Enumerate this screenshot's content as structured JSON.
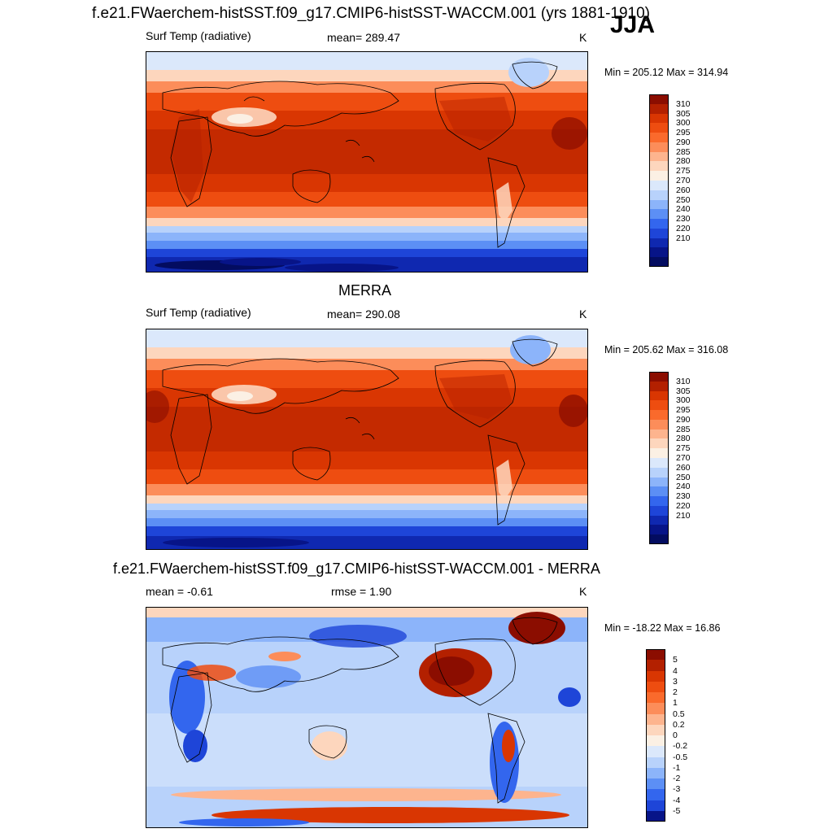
{
  "header": {
    "title": "f.e21.FWaerchem-histSST.f09_g17.CMIP6-histSST-WACCM.001 (yrs 1881-1910)",
    "season": "JJA"
  },
  "panels": [
    {
      "id": "model",
      "title": "",
      "left_label": "Surf Temp (radiative)",
      "center_label": "mean= 289.47",
      "units": "K",
      "minmax": "Min = 205.12 Max = 314.94"
    },
    {
      "id": "obs",
      "title": "MERRA",
      "left_label": "Surf Temp (radiative)",
      "center_label": "mean= 290.08",
      "units": "K",
      "minmax": "Min = 205.62 Max = 316.08"
    },
    {
      "id": "diff",
      "title": "f.e21.FWaerchem-histSST.f09_g17.CMIP6-histSST-WACCM.001 - MERRA",
      "left_label": "mean =  -0.61",
      "center_label": "rmse =   1.90",
      "units": "K",
      "minmax": "Min = -18.22 Max =  16.86"
    }
  ],
  "colorbars": {
    "abs": {
      "labels": [
        "310",
        "305",
        "300",
        "295",
        "290",
        "285",
        "280",
        "275",
        "270",
        "260",
        "250",
        "240",
        "230",
        "220",
        "210"
      ],
      "colors": [
        "#8b0d00",
        "#b32000",
        "#d93602",
        "#ee4d10",
        "#fa6a2c",
        "#fc8d5a",
        "#fdb48e",
        "#fdd6bd",
        "#fbf0e4",
        "#dbe8fb",
        "#b8d2fb",
        "#8cb4fa",
        "#5c8ff5",
        "#3366ee",
        "#1e45d8",
        "#0f28b0",
        "#071488",
        "#030c60"
      ]
    },
    "diff": {
      "labels": [
        "5",
        "4",
        "3",
        "2",
        "1",
        "0.5",
        "0.2",
        "0",
        "-0.2",
        "-0.5",
        "-1",
        "-2",
        "-3",
        "-4",
        "-5"
      ],
      "colors": [
        "#8b0d00",
        "#b32000",
        "#d93602",
        "#ee4d10",
        "#fa6a2c",
        "#fc8d5a",
        "#fdb48e",
        "#fdd6bd",
        "#fbf0e4",
        "#dbe8fb",
        "#b8d2fb",
        "#8cb4fa",
        "#5c8ff5",
        "#3366ee",
        "#1e45d8",
        "#071488"
      ]
    }
  },
  "chart_data": [
    {
      "type": "heatmap",
      "title": "f.e21.FWaerchem-histSST.f09_g17.CMIP6-histSST-WACCM.001 (yrs 1881-1910)",
      "variable": "Surf Temp (radiative)",
      "units": "K",
      "mean": 289.47,
      "min": 205.12,
      "max": 314.94,
      "levels": [
        210,
        220,
        230,
        240,
        250,
        260,
        270,
        275,
        280,
        285,
        290,
        295,
        300,
        305,
        310
      ]
    },
    {
      "type": "heatmap",
      "title": "MERRA",
      "variable": "Surf Temp (radiative)",
      "units": "K",
      "mean": 290.08,
      "min": 205.62,
      "max": 316.08,
      "levels": [
        210,
        220,
        230,
        240,
        250,
        260,
        270,
        275,
        280,
        285,
        290,
        295,
        300,
        305,
        310
      ]
    },
    {
      "type": "heatmap",
      "title": "f.e21.FWaerchem-histSST.f09_g17.CMIP6-histSST-WACCM.001 - MERRA",
      "units": "K",
      "mean": -0.61,
      "rmse": 1.9,
      "min": -18.22,
      "max": 16.86,
      "levels": [
        -5,
        -4,
        -3,
        -2,
        -1,
        -0.5,
        -0.2,
        0,
        0.2,
        0.5,
        1,
        2,
        3,
        4,
        5
      ]
    }
  ]
}
